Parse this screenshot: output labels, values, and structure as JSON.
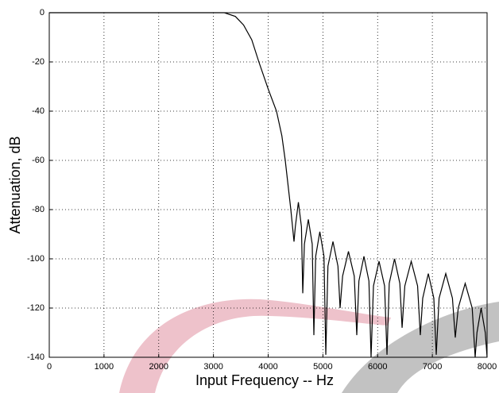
{
  "chart_data": {
    "type": "line",
    "xlabel": "Input Frequency -- Hz",
    "ylabel": "Attenuation, dB",
    "xlim": [
      0,
      8000
    ],
    "xticks": [
      0,
      1000,
      2000,
      3000,
      4000,
      5000,
      6000,
      7000,
      8000
    ],
    "ylim": [
      -140,
      0
    ],
    "yticks": [
      0,
      -20,
      -40,
      -60,
      -80,
      -100,
      -120,
      -140
    ],
    "grid": true,
    "series": [
      {
        "color": "#000000",
        "x": [
          0,
          3200,
          3400,
          3550,
          3700,
          3830,
          4000,
          4152,
          4250,
          4312,
          4414,
          4472,
          4496,
          4552,
          4608,
          4632,
          4662,
          4734,
          4805,
          4835,
          4868,
          4944,
          5020,
          5053,
          5092,
          5184,
          5275,
          5314,
          5360,
          5467,
          5573,
          5619,
          5658,
          5750,
          5841,
          5880,
          5924,
          6026,
          6127,
          6171,
          6212,
          6309,
          6406,
          6447,
          6497,
          6614,
          6730,
          6780,
          6824,
          6926,
          7027,
          7071,
          7123,
          7245,
          7367,
          7419,
          7473,
          7600,
          7728,
          7782,
          7815,
          7891,
          7967,
          8000
        ],
        "values": [
          0,
          0,
          -1.5,
          -5,
          -11,
          -20,
          -31,
          -40,
          -50,
          -60,
          -80,
          -93,
          -87,
          -77,
          -87,
          -114,
          -94,
          -84,
          -94,
          -131,
          -99,
          -89,
          -99,
          -139,
          -103,
          -93,
          -103,
          -120,
          -107,
          -97,
          -107,
          -131,
          -109,
          -99,
          -109,
          -140,
          -111,
          -101,
          -111,
          -139,
          -110,
          -100,
          -110,
          -128,
          -111,
          -101,
          -111,
          -131,
          -116,
          -106,
          -116,
          -139,
          -116,
          -106,
          -116,
          -132,
          -120,
          -110,
          -120,
          -140,
          -130,
          -120,
          -130,
          -140
        ]
      }
    ]
  }
}
